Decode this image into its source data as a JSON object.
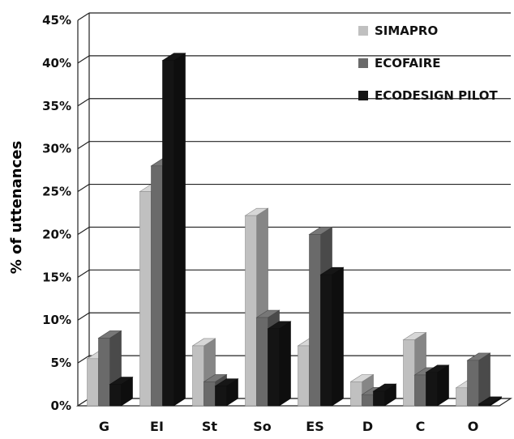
{
  "chart_data": {
    "type": "bar",
    "title": "",
    "xlabel": "",
    "ylabel": "% of uttenances",
    "categories": [
      "G",
      "EI",
      "St",
      "So",
      "ES",
      "D",
      "C",
      "O"
    ],
    "series": [
      {
        "name": "SIMAPRO",
        "color": "#c0c0c0",
        "values": [
          5.5,
          25,
          7,
          22.2,
          7,
          2.8,
          7.7,
          2.1
        ]
      },
      {
        "name": "ECOFAIRE",
        "color": "#6a6a6a",
        "values": [
          7.9,
          28,
          2.8,
          10.3,
          20,
          1.3,
          3.6,
          5.3
        ]
      },
      {
        "name": "ECODESIGN PILOT",
        "color": "#141414",
        "values": [
          2.5,
          40.3,
          2.3,
          9,
          15.3,
          1.7,
          3.9,
          0.2
        ]
      }
    ],
    "ylim": [
      0,
      45
    ],
    "yticks": [
      "0%",
      "5%",
      "10%",
      "15%",
      "20%",
      "25%",
      "30%",
      "35%",
      "40%",
      "45%"
    ],
    "grid": true,
    "legend_position": "top-right"
  }
}
